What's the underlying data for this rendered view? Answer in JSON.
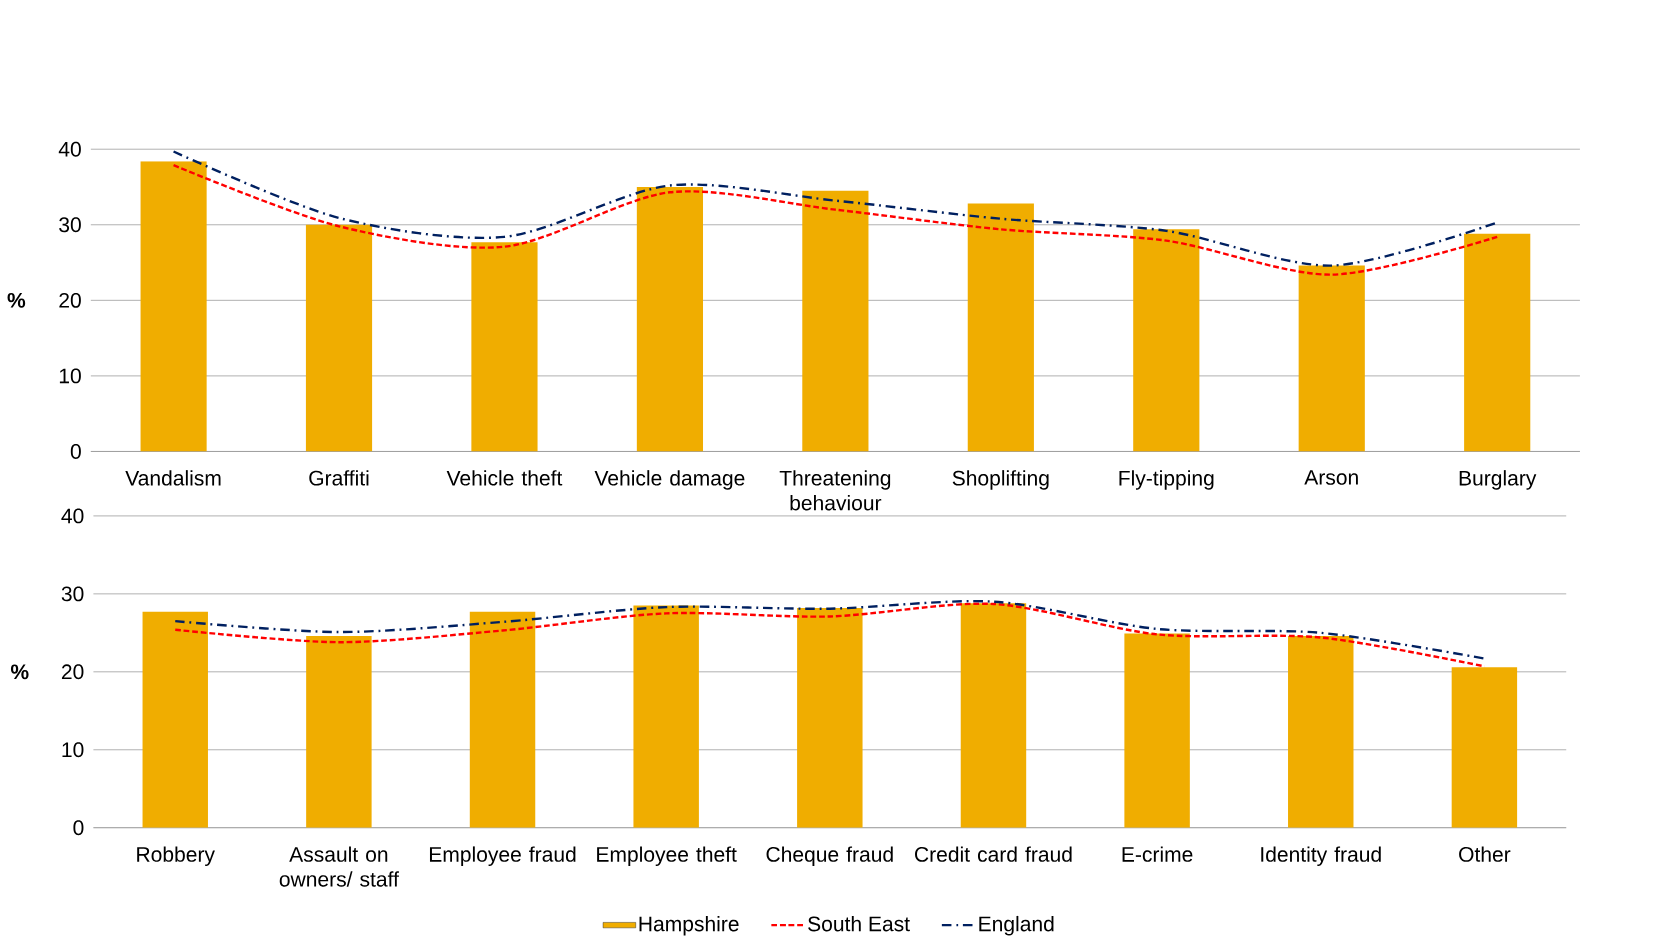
{
  "chart_data": [
    {
      "type": "bar",
      "ylabel": "%",
      "categories": [
        "Vandalism",
        "Graffiti",
        "Vehicle theft",
        "Vehicle damage",
        "Threatening behaviour",
        "Shoplifting",
        "Fly-tipping",
        "Arson",
        "Burglary"
      ],
      "ylim": [
        0,
        40
      ],
      "yticks": [
        0,
        10,
        20,
        30,
        40
      ],
      "grid": "y",
      "legend": false,
      "marker": "none",
      "series": [
        {
          "color": "#f0ad00",
          "values": [
            38.4,
            30.0,
            27.7,
            35.0,
            34.5,
            32.8,
            29.4,
            24.6,
            28.8
          ]
        },
        {
          "type": "line",
          "line_style": "dashed",
          "color": "#ff0000",
          "values": [
            37.9,
            29.8,
            27.1,
            34.3,
            32.0,
            29.4,
            27.9,
            23.4,
            28.4
          ]
        },
        {
          "type": "line",
          "line_style": "dashdot",
          "color": "#002060",
          "values": [
            39.7,
            30.9,
            28.4,
            35.2,
            33.2,
            30.8,
            29.2,
            24.6,
            30.3
          ]
        }
      ]
    },
    {
      "type": "bar",
      "ylabel": "%",
      "categories": [
        "Robbery",
        "Assault on owners/ staff",
        "Employee fraud",
        "Employee theft",
        "Cheque fraud",
        "Credit card fraud",
        "E-crime",
        "Identity fraud",
        "Other"
      ],
      "ylim": [
        0,
        40
      ],
      "yticks": [
        0,
        10,
        20,
        30,
        40
      ],
      "grid": "y",
      "legend": "bottom",
      "marker": "none",
      "series": [
        {
          "name": "Hampshire",
          "color": "#f0ad00",
          "values": [
            27.7,
            24.6,
            27.7,
            28.5,
            28.2,
            28.8,
            24.9,
            24.6,
            20.6
          ]
        },
        {
          "name": "South East",
          "type": "line",
          "line_style": "dashed",
          "color": "#ff0000",
          "values": [
            25.4,
            23.8,
            25.3,
            27.5,
            27.1,
            28.7,
            24.8,
            24.4,
            20.7
          ]
        },
        {
          "name": "England",
          "type": "line",
          "line_style": "dashdot",
          "color": "#002060",
          "values": [
            26.5,
            25.1,
            26.4,
            28.3,
            28.1,
            29.0,
            25.5,
            25.0,
            21.7
          ]
        }
      ]
    }
  ]
}
